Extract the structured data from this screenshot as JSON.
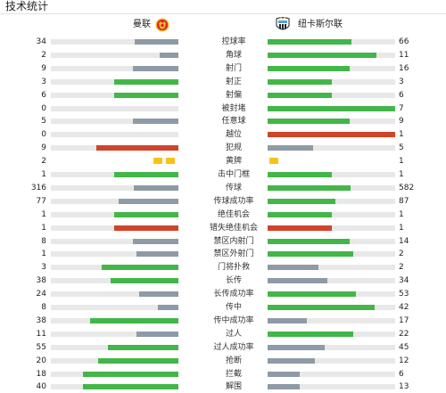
{
  "header": {
    "title": "技术统计"
  },
  "teams": {
    "home": "曼联",
    "away": "纽卡斯尔联"
  },
  "colors": {
    "green": "#43b649",
    "grey": "#8e9aa6",
    "red": "#d0442a",
    "yellow": "#f6c316",
    "track": "#e8e8e8"
  },
  "icons": {
    "home_crest": "manchester-united-crest-icon",
    "away_crest": "newcastle-united-crest-icon",
    "card": "yellow-card-icon"
  },
  "stats": [
    {
      "label": "控球率",
      "home": "34",
      "away": "66",
      "home_fill": 0.34,
      "away_fill": 0.66,
      "home_color": "grey",
      "away_color": "green"
    },
    {
      "label": "角球",
      "home": "2",
      "away": "11",
      "home_fill": 0.15,
      "away_fill": 0.85,
      "home_color": "grey",
      "away_color": "green"
    },
    {
      "label": "射门",
      "home": "9",
      "away": "16",
      "home_fill": 0.36,
      "away_fill": 0.64,
      "home_color": "grey",
      "away_color": "green"
    },
    {
      "label": "射正",
      "home": "3",
      "away": "3",
      "home_fill": 0.5,
      "away_fill": 0.5,
      "home_color": "green",
      "away_color": "green"
    },
    {
      "label": "射偏",
      "home": "6",
      "away": "6",
      "home_fill": 0.5,
      "away_fill": 0.5,
      "home_color": "green",
      "away_color": "green"
    },
    {
      "label": "被封堵",
      "home": "0",
      "away": "7",
      "home_fill": 0,
      "away_fill": 1,
      "home_color": "grey",
      "away_color": "green"
    },
    {
      "label": "任意球",
      "home": "5",
      "away": "9",
      "home_fill": 0.36,
      "away_fill": 0.64,
      "home_color": "grey",
      "away_color": "green"
    },
    {
      "label": "越位",
      "home": "0",
      "away": "1",
      "home_fill": 0,
      "away_fill": 1,
      "home_color": "grey",
      "away_color": "red"
    },
    {
      "label": "犯规",
      "home": "9",
      "away": "5",
      "home_fill": 0.64,
      "away_fill": 0.36,
      "home_color": "red",
      "away_color": "grey"
    },
    {
      "label": "黄牌",
      "home": "2",
      "away": "1",
      "cards": true,
      "home_cards": 2,
      "away_cards": 1
    },
    {
      "label": "击中门框",
      "home": "1",
      "away": "1",
      "home_fill": 0.5,
      "away_fill": 0.5,
      "home_color": "green",
      "away_color": "green"
    },
    {
      "label": "传球",
      "home": "316",
      "away": "582",
      "home_fill": 0.35,
      "away_fill": 0.65,
      "home_color": "grey",
      "away_color": "green"
    },
    {
      "label": "传球成功率",
      "home": "77",
      "away": "87",
      "home_fill": 0.47,
      "away_fill": 0.53,
      "home_color": "grey",
      "away_color": "green"
    },
    {
      "label": "绝佳机会",
      "home": "1",
      "away": "1",
      "home_fill": 0.5,
      "away_fill": 0.5,
      "home_color": "green",
      "away_color": "green"
    },
    {
      "label": "错失绝佳机会",
      "home": "1",
      "away": "1",
      "home_fill": 0.5,
      "away_fill": 0.5,
      "home_color": "red",
      "away_color": "red"
    },
    {
      "label": "禁区内射门",
      "home": "8",
      "away": "14",
      "home_fill": 0.36,
      "away_fill": 0.64,
      "home_color": "grey",
      "away_color": "green"
    },
    {
      "label": "禁区外射门",
      "home": "1",
      "away": "2",
      "home_fill": 0.33,
      "away_fill": 0.67,
      "home_color": "grey",
      "away_color": "green"
    },
    {
      "label": "门将扑救",
      "home": "3",
      "away": "2",
      "home_fill": 0.6,
      "away_fill": 0.4,
      "home_color": "green",
      "away_color": "grey"
    },
    {
      "label": "长传",
      "home": "38",
      "away": "34",
      "home_fill": 0.53,
      "away_fill": 0.47,
      "home_color": "green",
      "away_color": "grey"
    },
    {
      "label": "长传成功率",
      "home": "24",
      "away": "53",
      "home_fill": 0.31,
      "away_fill": 0.69,
      "home_color": "grey",
      "away_color": "green"
    },
    {
      "label": "传中",
      "home": "8",
      "away": "42",
      "home_fill": 0.16,
      "away_fill": 0.84,
      "home_color": "grey",
      "away_color": "green"
    },
    {
      "label": "传中成功率",
      "home": "38",
      "away": "17",
      "home_fill": 0.69,
      "away_fill": 0.31,
      "home_color": "green",
      "away_color": "grey"
    },
    {
      "label": "过人",
      "home": "11",
      "away": "22",
      "home_fill": 0.33,
      "away_fill": 0.67,
      "home_color": "grey",
      "away_color": "green"
    },
    {
      "label": "过人成功率",
      "home": "55",
      "away": "45",
      "home_fill": 0.55,
      "away_fill": 0.45,
      "home_color": "green",
      "away_color": "grey"
    },
    {
      "label": "抢断",
      "home": "20",
      "away": "12",
      "home_fill": 0.63,
      "away_fill": 0.37,
      "home_color": "green",
      "away_color": "grey"
    },
    {
      "label": "拦截",
      "home": "18",
      "away": "6",
      "home_fill": 0.75,
      "away_fill": 0.25,
      "home_color": "green",
      "away_color": "grey"
    },
    {
      "label": "解围",
      "home": "40",
      "away": "13",
      "home_fill": 0.75,
      "away_fill": 0.25,
      "home_color": "green",
      "away_color": "grey"
    }
  ]
}
